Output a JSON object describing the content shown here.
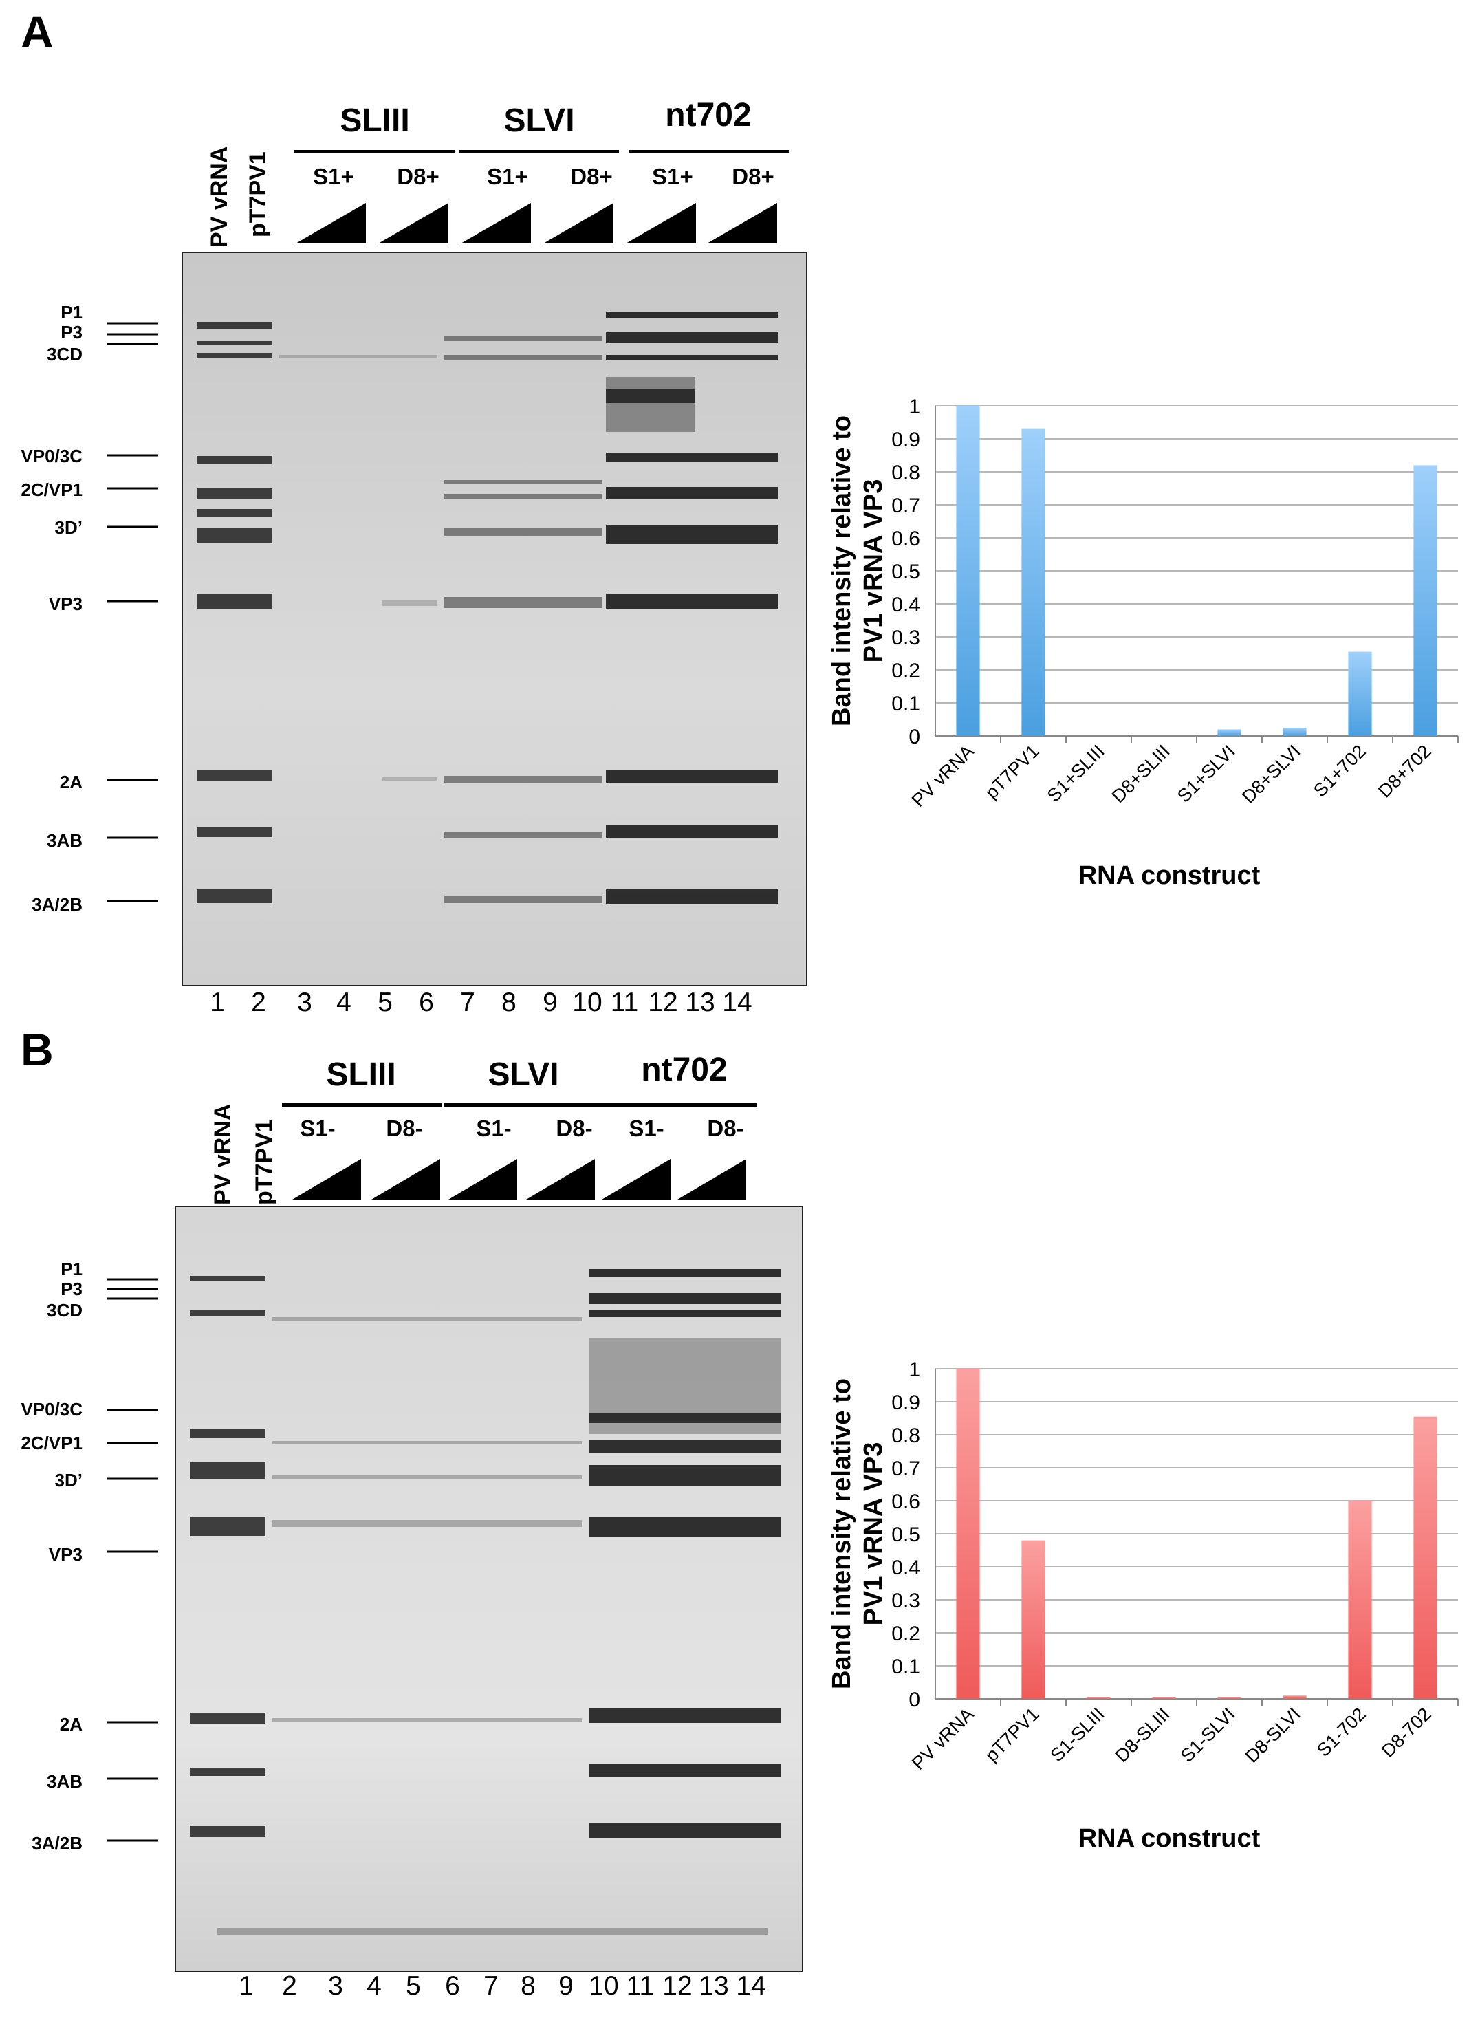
{
  "panels": [
    {
      "letter": "A",
      "lane_top_labels": [
        "PV vRNA",
        "pT7PV1"
      ],
      "groups": [
        {
          "label": "SLIII",
          "subs": [
            "S1+",
            "D8+"
          ]
        },
        {
          "label": "SLVI",
          "subs": [
            "S1+",
            "D8+"
          ]
        },
        {
          "label": "nt702",
          "subs": [
            "S1+",
            "D8+"
          ]
        }
      ],
      "markers": [
        "P1",
        "P3",
        "3CD",
        "VP0/3C",
        "2C/VP1",
        "3D’",
        "VP3",
        "2A",
        "3AB",
        "3A/2B"
      ],
      "lane_numbers": [
        "1",
        "2",
        "3",
        "4",
        "5",
        "6",
        "7",
        "8",
        "9",
        "10",
        "11",
        "12",
        "13",
        "14"
      ]
    },
    {
      "letter": "B",
      "lane_top_labels": [
        "PV vRNA",
        "pT7PV1"
      ],
      "groups": [
        {
          "label": "SLIII",
          "subs": [
            "S1-",
            "D8-"
          ]
        },
        {
          "label": "SLVI",
          "subs": [
            "S1-",
            "D8-"
          ]
        },
        {
          "label": "nt702",
          "subs": [
            "S1-",
            "D8-"
          ]
        }
      ],
      "markers": [
        "P1",
        "P3",
        "3CD",
        "VP0/3C",
        "2C/VP1",
        "3D’",
        "VP3",
        "2A",
        "3AB",
        "3A/2B"
      ],
      "lane_numbers": [
        "1",
        "2",
        "3",
        "4",
        "5",
        "6",
        "7",
        "8",
        "9",
        "10",
        "11",
        "12",
        "13",
        "14"
      ]
    }
  ],
  "chart_data": [
    {
      "type": "bar",
      "ylabel": "Band intensity relative to PV1 vRNA VP3",
      "xlabel": "RNA construct",
      "ylim": [
        0,
        1
      ],
      "yticks": [
        "0",
        "0.1",
        "0.2",
        "0.3",
        "0.4",
        "0.5",
        "0.6",
        "0.7",
        "0.8",
        "0.9",
        "1"
      ],
      "categories": [
        "PV vRNA",
        "pT7PV1",
        "S1+SLIII",
        "D8+SLIII",
        "S1+SLVI",
        "D8+SLVI",
        "S1+702",
        "D8+702"
      ],
      "values": [
        1.0,
        0.93,
        0.0,
        0.0,
        0.02,
        0.025,
        0.255,
        0.82
      ],
      "grid": true,
      "color": "#4a9fe0"
    },
    {
      "type": "bar",
      "ylabel": "Band intensity relative to PV1 vRNA VP3",
      "xlabel": "RNA construct",
      "ylim": [
        0,
        1
      ],
      "yticks": [
        "0",
        "0.1",
        "0.2",
        "0.3",
        "0.4",
        "0.5",
        "0.6",
        "0.7",
        "0.8",
        "0.9",
        "1"
      ],
      "categories": [
        "PV vRNA",
        "pT7PV1",
        "S1-SLIII",
        "D8-SLIII",
        "S1-SLVI",
        "D8-SLVI",
        "S1-702",
        "D8-702"
      ],
      "values": [
        1.0,
        0.48,
        0.005,
        0.005,
        0.005,
        0.01,
        0.6,
        0.855
      ],
      "grid": true,
      "color": "#f05a5a"
    }
  ]
}
